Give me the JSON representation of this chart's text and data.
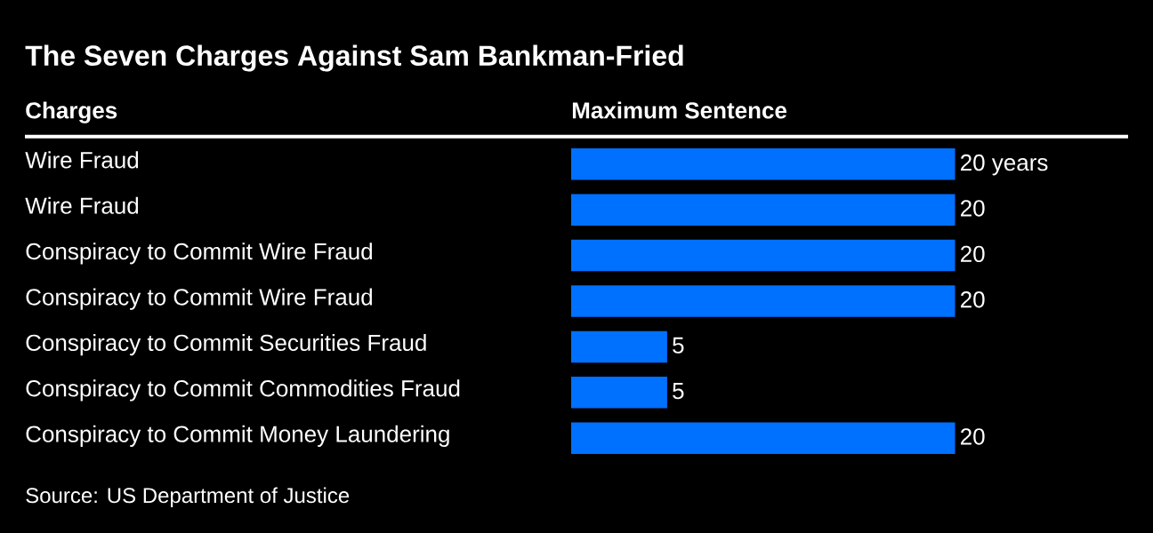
{
  "chart_data": {
    "type": "bar",
    "orientation": "horizontal",
    "title": "The Seven Charges Against Sam Bankman-Fried",
    "ylabel": "Charges",
    "xlabel": "Maximum Sentence",
    "categories": [
      "Wire Fraud",
      "Wire Fraud",
      "Conspiracy to Commit Wire Fraud",
      "Conspiracy to Commit Wire Fraud",
      "Conspiracy to Commit Securities Fraud",
      "Conspiracy to Commit Commodities Fraud",
      "Conspiracy to Commit Money Laundering"
    ],
    "values": [
      20,
      20,
      20,
      20,
      5,
      5,
      20
    ],
    "value_labels": [
      "20 years",
      "20",
      "20",
      "20",
      "5",
      "5",
      "20"
    ],
    "color": "#0070ff",
    "annotations": [
      "Source: US Department of Justice"
    ]
  }
}
